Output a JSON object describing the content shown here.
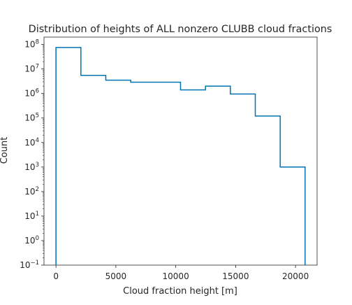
{
  "chart_data": {
    "type": "histogram",
    "title": "Distribution of heights of ALL nonzero CLUBB cloud fractions",
    "xlabel": "Cloud fraction height [m]",
    "ylabel": "Count",
    "yscale": "log",
    "xlim": [
      -1000,
      21800
    ],
    "ylim": [
      0.1,
      200000000
    ],
    "x_ticks": [
      0,
      5000,
      10000,
      15000,
      20000
    ],
    "x_tick_labels": [
      "0",
      "5000",
      "10000",
      "15000",
      "20000"
    ],
    "y_ticks": [
      {
        "mantissa": "10",
        "exp": "−1",
        "value": 0.1
      },
      {
        "mantissa": "10",
        "exp": "0",
        "value": 1
      },
      {
        "mantissa": "10",
        "exp": "1",
        "value": 10
      },
      {
        "mantissa": "10",
        "exp": "2",
        "value": 100
      },
      {
        "mantissa": "10",
        "exp": "3",
        "value": 1000
      },
      {
        "mantissa": "10",
        "exp": "4",
        "value": 10000
      },
      {
        "mantissa": "10",
        "exp": "5",
        "value": 100000
      },
      {
        "mantissa": "10",
        "exp": "6",
        "value": 1000000
      },
      {
        "mantissa": "10",
        "exp": "7",
        "value": 10000000
      },
      {
        "mantissa": "10",
        "exp": "8",
        "value": 100000000
      }
    ],
    "bin_edges": [
      0,
      2080,
      4160,
      6240,
      8320,
      10400,
      12480,
      14560,
      16640,
      18720,
      20800
    ],
    "counts": [
      75000000,
      5500000,
      3500000,
      2900000,
      2900000,
      1400000,
      2000000,
      950000,
      120000,
      1000
    ],
    "line_color": "#0173b2",
    "grid": false
  }
}
